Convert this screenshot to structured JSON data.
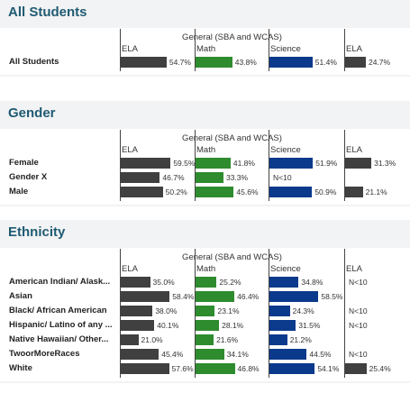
{
  "colors": {
    "ELA": "#404040",
    "Math": "#2e8b2e",
    "Science": "#0b3a8c"
  },
  "chart_data": [
    {
      "type": "bar",
      "title": "All Students",
      "group_label": "General (SBA and WCAS)",
      "columns": [
        "ELA",
        "Math",
        "Science",
        "ELA"
      ],
      "rows": [
        {
          "label": "All Students",
          "values": [
            54.7,
            43.8,
            51.4,
            24.7
          ],
          "texts": [
            "54.7%",
            "43.8%",
            "51.4%",
            "24.7%"
          ]
        }
      ]
    },
    {
      "type": "bar",
      "title": "Gender",
      "group_label": "General (SBA and WCAS)",
      "columns": [
        "ELA",
        "Math",
        "Science",
        "ELA"
      ],
      "rows": [
        {
          "label": "Female",
          "values": [
            59.5,
            41.8,
            51.9,
            31.3
          ],
          "texts": [
            "59.5%",
            "41.8%",
            "51.9%",
            "31.3%"
          ]
        },
        {
          "label": "Gender X",
          "values": [
            46.7,
            33.3,
            null,
            null
          ],
          "texts": [
            "46.7%",
            "33.3%",
            "N<10",
            ""
          ]
        },
        {
          "label": "Male",
          "values": [
            50.2,
            45.6,
            50.9,
            21.1
          ],
          "texts": [
            "50.2%",
            "45.6%",
            "50.9%",
            "21.1%"
          ]
        }
      ]
    },
    {
      "type": "bar",
      "title": "Ethnicity",
      "group_label": "General (SBA and WCAS)",
      "columns": [
        "ELA",
        "Math",
        "Science",
        "ELA"
      ],
      "rows": [
        {
          "label": "American Indian/ Alask...",
          "values": [
            35.0,
            25.2,
            34.8,
            null
          ],
          "texts": [
            "35.0%",
            "25.2%",
            "34.8%",
            "N<10"
          ]
        },
        {
          "label": "Asian",
          "values": [
            58.4,
            46.4,
            58.5,
            null
          ],
          "texts": [
            "58.4%",
            "46.4%",
            "58.5%",
            ""
          ]
        },
        {
          "label": "Black/ African American",
          "values": [
            38.0,
            23.1,
            24.3,
            null
          ],
          "texts": [
            "38.0%",
            "23.1%",
            "24.3%",
            "N<10"
          ]
        },
        {
          "label": "Hispanic/ Latino of any ...",
          "values": [
            40.1,
            28.1,
            31.5,
            null
          ],
          "texts": [
            "40.1%",
            "28.1%",
            "31.5%",
            "N<10"
          ]
        },
        {
          "label": "Native Hawaiian/ Other...",
          "values": [
            21.0,
            21.6,
            21.2,
            null
          ],
          "texts": [
            "21.0%",
            "21.6%",
            "21.2%",
            ""
          ]
        },
        {
          "label": "TwoorMoreRaces",
          "values": [
            45.4,
            34.1,
            44.5,
            null
          ],
          "texts": [
            "45.4%",
            "34.1%",
            "44.5%",
            "N<10"
          ]
        },
        {
          "label": "White",
          "values": [
            57.6,
            46.8,
            54.1,
            25.4
          ],
          "texts": [
            "57.6%",
            "46.8%",
            "54.1%",
            "25.4%"
          ]
        }
      ]
    }
  ]
}
